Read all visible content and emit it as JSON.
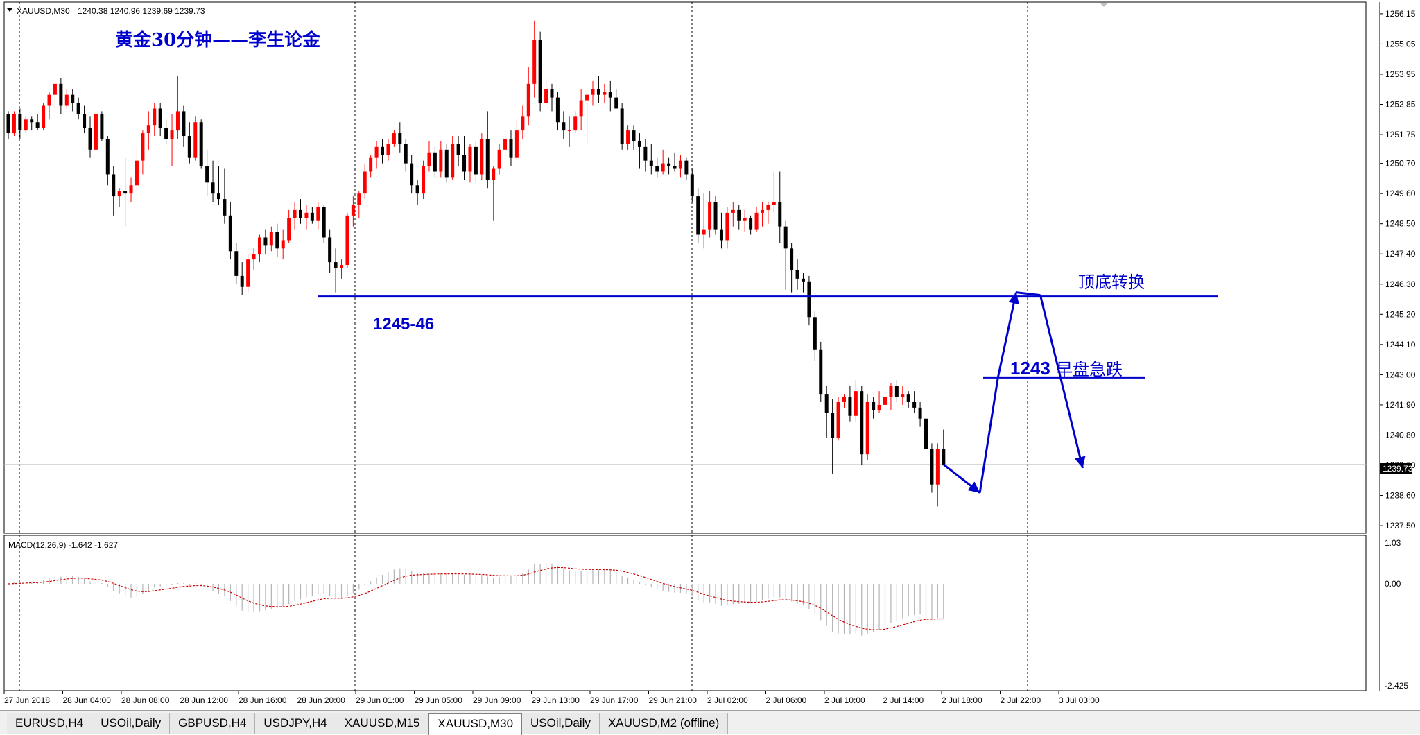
{
  "header": {
    "symbol": "XAUUSD,M30",
    "ohlc": "1240.38 1240.96 1239.69 1239.73"
  },
  "annotations": {
    "title": "黄金30分钟——李生论金",
    "support_label": "1245-46",
    "top_bottom_label": "顶底转换",
    "level_1243_num": "1243",
    "level_1243_text": "早盘急跌"
  },
  "price_axis": {
    "ticks": [
      "1256.15",
      "1255.05",
      "1253.95",
      "1252.85",
      "1251.75",
      "1250.70",
      "1249.60",
      "1248.50",
      "1247.40",
      "1246.30",
      "1245.20",
      "1244.10",
      "1243.00",
      "1241.90",
      "1240.80",
      "1239.70",
      "1238.60",
      "1237.50"
    ],
    "current_price": "1239.73"
  },
  "macd": {
    "label": "MACD(12,26,9) -1.642 -1.627",
    "scale_top": "1.03",
    "scale_zero": "0.00",
    "scale_bottom": "-2.425"
  },
  "time_axis": [
    "27 Jun 2018",
    "28 Jun 04:00",
    "28 Jun 08:00",
    "28 Jun 12:00",
    "28 Jun 16:00",
    "28 Jun 20:00",
    "29 Jun 01:00",
    "29 Jun 05:00",
    "29 Jun 09:00",
    "29 Jun 13:00",
    "29 Jun 17:00",
    "29 Jun 21:00",
    "2 Jul 02:00",
    "2 Jul 06:00",
    "2 Jul 10:00",
    "2 Jul 14:00",
    "2 Jul 18:00",
    "2 Jul 22:00",
    "3 Jul 03:00"
  ],
  "tabs": [
    {
      "label": "EURUSD,H4",
      "active": false
    },
    {
      "label": "USOil,Daily",
      "active": false
    },
    {
      "label": "GBPUSD,H4",
      "active": false
    },
    {
      "label": "USDJPY,H4",
      "active": false
    },
    {
      "label": "XAUUSD,M15",
      "active": false
    },
    {
      "label": "XAUUSD,M30",
      "active": true
    },
    {
      "label": "USOil,Daily",
      "active": false
    },
    {
      "label": "XAUUSD,M2 (offline)",
      "active": false
    }
  ],
  "colors": {
    "bull": "#ff0000",
    "bear": "#000000",
    "annotation_blue": "#0000cc",
    "macd_signal": "#cc0000",
    "macd_hist": "#b4b4b4"
  },
  "chart_data": {
    "type": "candlestick",
    "symbol": "XAUUSD",
    "timeframe": "M30",
    "ylim": [
      1237.3,
      1256.4
    ],
    "support_level": 1245.85,
    "level_1243": 1242.9,
    "current_price": 1239.73,
    "candles": [
      [
        1252.5,
        1252.6,
        1251.6,
        1251.8
      ],
      [
        1251.8,
        1252.6,
        1251.7,
        1252.5
      ],
      [
        1252.5,
        1252.7,
        1251.6,
        1251.9
      ],
      [
        1251.9,
        1252.4,
        1251.8,
        1252.3
      ],
      [
        1252.3,
        1252.4,
        1251.9,
        1252.2
      ],
      [
        1252.2,
        1252.5,
        1251.9,
        1252.0
      ],
      [
        1252.0,
        1252.9,
        1251.9,
        1252.8
      ],
      [
        1252.8,
        1253.3,
        1252.3,
        1253.2
      ],
      [
        1253.2,
        1253.6,
        1252.6,
        1253.6
      ],
      [
        1253.6,
        1253.8,
        1252.5,
        1252.8
      ],
      [
        1252.8,
        1253.4,
        1252.7,
        1253.2
      ],
      [
        1253.2,
        1253.4,
        1252.6,
        1252.9
      ],
      [
        1252.9,
        1253.1,
        1252.3,
        1252.5
      ],
      [
        1252.5,
        1252.8,
        1251.8,
        1252.0
      ],
      [
        1252.0,
        1252.4,
        1250.9,
        1251.2
      ],
      [
        1251.2,
        1252.6,
        1251.2,
        1252.5
      ],
      [
        1252.5,
        1252.6,
        1251.5,
        1251.6
      ],
      [
        1251.6,
        1251.7,
        1249.9,
        1250.3
      ],
      [
        1250.3,
        1250.6,
        1248.8,
        1249.5
      ],
      [
        1249.5,
        1249.8,
        1249.1,
        1249.7
      ],
      [
        1249.7,
        1250.9,
        1248.4,
        1249.6
      ],
      [
        1249.6,
        1250.2,
        1249.3,
        1249.9
      ],
      [
        1249.9,
        1251.3,
        1249.6,
        1250.8
      ],
      [
        1250.8,
        1251.9,
        1250.3,
        1251.8
      ],
      [
        1251.8,
        1252.6,
        1251.2,
        1252.1
      ],
      [
        1252.1,
        1252.9,
        1251.7,
        1252.7
      ],
      [
        1252.7,
        1252.9,
        1251.7,
        1252.0
      ],
      [
        1252.0,
        1252.3,
        1251.4,
        1251.6
      ],
      [
        1251.6,
        1252.5,
        1250.6,
        1251.9
      ],
      [
        1251.9,
        1253.9,
        1251.6,
        1252.6
      ],
      [
        1252.6,
        1252.8,
        1251.3,
        1251.7
      ],
      [
        1251.7,
        1252.2,
        1250.7,
        1250.9
      ],
      [
        1250.9,
        1252.4,
        1250.8,
        1252.2
      ],
      [
        1252.2,
        1252.3,
        1250.5,
        1250.6
      ],
      [
        1250.6,
        1251.2,
        1249.5,
        1250.0
      ],
      [
        1250.0,
        1250.8,
        1249.3,
        1249.6
      ],
      [
        1249.6,
        1250.6,
        1249.2,
        1249.4
      ],
      [
        1249.4,
        1250.5,
        1248.5,
        1248.8
      ],
      [
        1248.8,
        1249.3,
        1247.2,
        1247.5
      ],
      [
        1247.5,
        1247.8,
        1246.3,
        1246.6
      ],
      [
        1246.6,
        1247.1,
        1245.9,
        1246.2
      ],
      [
        1246.2,
        1247.4,
        1246.0,
        1247.2
      ],
      [
        1247.2,
        1247.6,
        1246.8,
        1247.4
      ],
      [
        1247.4,
        1248.1,
        1247.1,
        1248.0
      ],
      [
        1248.0,
        1248.3,
        1247.4,
        1247.7
      ],
      [
        1247.7,
        1248.4,
        1247.5,
        1248.2
      ],
      [
        1248.2,
        1248.5,
        1247.3,
        1247.6
      ],
      [
        1247.6,
        1248.3,
        1247.2,
        1247.9
      ],
      [
        1247.9,
        1249.0,
        1247.8,
        1248.7
      ],
      [
        1248.7,
        1249.3,
        1248.3,
        1249.0
      ],
      [
        1249.0,
        1249.4,
        1248.5,
        1248.7
      ],
      [
        1248.7,
        1249.2,
        1248.3,
        1248.9
      ],
      [
        1248.9,
        1249.1,
        1248.5,
        1248.6
      ],
      [
        1248.6,
        1249.3,
        1248.3,
        1249.1
      ],
      [
        1249.1,
        1249.2,
        1247.8,
        1248.0
      ],
      [
        1248.0,
        1248.3,
        1246.7,
        1247.1
      ],
      [
        1247.1,
        1247.6,
        1246.0,
        1246.9
      ],
      [
        1246.9,
        1247.2,
        1246.5,
        1247.0
      ],
      [
        1247.0,
        1248.9,
        1246.9,
        1248.8
      ],
      [
        1248.8,
        1249.5,
        1248.4,
        1249.2
      ],
      [
        1249.2,
        1249.7,
        1248.7,
        1249.6
      ],
      [
        1249.6,
        1250.7,
        1249.4,
        1250.4
      ],
      [
        1250.4,
        1251.0,
        1250.2,
        1250.9
      ],
      [
        1250.9,
        1251.5,
        1250.5,
        1251.3
      ],
      [
        1251.3,
        1251.6,
        1250.7,
        1251.0
      ],
      [
        1251.0,
        1251.6,
        1250.8,
        1251.4
      ],
      [
        1251.4,
        1251.9,
        1251.3,
        1251.8
      ],
      [
        1251.8,
        1252.2,
        1251.1,
        1251.4
      ],
      [
        1251.4,
        1251.6,
        1250.4,
        1250.7
      ],
      [
        1250.7,
        1251.0,
        1249.6,
        1249.9
      ],
      [
        1249.9,
        1250.1,
        1249.2,
        1249.6
      ],
      [
        1249.6,
        1250.8,
        1249.4,
        1250.6
      ],
      [
        1250.6,
        1251.5,
        1250.4,
        1251.1
      ],
      [
        1251.1,
        1251.3,
        1250.2,
        1250.4
      ],
      [
        1250.4,
        1251.5,
        1250.2,
        1251.2
      ],
      [
        1251.2,
        1251.4,
        1250.0,
        1250.2
      ],
      [
        1250.2,
        1251.7,
        1250.1,
        1251.4
      ],
      [
        1251.4,
        1251.7,
        1250.6,
        1251.0
      ],
      [
        1251.0,
        1251.7,
        1250.1,
        1250.4
      ],
      [
        1250.4,
        1251.4,
        1250.0,
        1251.3
      ],
      [
        1251.3,
        1251.5,
        1250.0,
        1250.3
      ],
      [
        1250.3,
        1251.8,
        1250.1,
        1251.6
      ],
      [
        1251.6,
        1252.6,
        1249.8,
        1250.1
      ],
      [
        1250.1,
        1250.6,
        1248.6,
        1250.5
      ],
      [
        1250.5,
        1251.4,
        1250.3,
        1251.2
      ],
      [
        1251.2,
        1251.9,
        1250.8,
        1251.6
      ],
      [
        1251.6,
        1251.9,
        1250.6,
        1250.9
      ],
      [
        1250.9,
        1252.3,
        1250.8,
        1251.9
      ],
      [
        1251.9,
        1252.8,
        1251.6,
        1252.4
      ],
      [
        1252.4,
        1254.2,
        1252.1,
        1253.6
      ],
      [
        1253.6,
        1255.9,
        1253.1,
        1255.2
      ],
      [
        1255.2,
        1255.5,
        1252.6,
        1252.9
      ],
      [
        1252.9,
        1253.8,
        1252.8,
        1253.4
      ],
      [
        1253.4,
        1253.6,
        1252.6,
        1253.1
      ],
      [
        1253.1,
        1253.3,
        1251.9,
        1252.2
      ],
      [
        1252.2,
        1252.6,
        1251.6,
        1251.9
      ],
      [
        1251.9,
        1252.4,
        1251.3,
        1251.9
      ],
      [
        1251.9,
        1252.6,
        1251.8,
        1252.4
      ],
      [
        1252.4,
        1253.4,
        1251.9,
        1253.0
      ],
      [
        1253.0,
        1253.1,
        1251.4,
        1253.2
      ],
      [
        1253.2,
        1253.7,
        1252.8,
        1253.4
      ],
      [
        1253.4,
        1253.9,
        1252.9,
        1253.2
      ],
      [
        1253.2,
        1253.6,
        1252.9,
        1253.3
      ],
      [
        1253.3,
        1253.7,
        1252.6,
        1253.1
      ],
      [
        1253.1,
        1253.4,
        1252.7,
        1252.7
      ],
      [
        1252.7,
        1252.9,
        1251.2,
        1251.4
      ],
      [
        1251.4,
        1252.1,
        1251.2,
        1251.9
      ],
      [
        1251.9,
        1252.1,
        1251.2,
        1251.5
      ],
      [
        1251.5,
        1251.8,
        1250.5,
        1251.3
      ],
      [
        1251.3,
        1251.6,
        1250.4,
        1250.8
      ],
      [
        1250.8,
        1251.4,
        1250.3,
        1250.6
      ],
      [
        1250.6,
        1250.9,
        1250.2,
        1250.4
      ],
      [
        1250.4,
        1251.2,
        1250.3,
        1250.7
      ],
      [
        1250.7,
        1250.9,
        1250.3,
        1250.6
      ],
      [
        1250.6,
        1251.1,
        1250.4,
        1250.5
      ],
      [
        1250.5,
        1251.0,
        1250.2,
        1250.8
      ],
      [
        1250.8,
        1250.9,
        1250.1,
        1250.3
      ],
      [
        1250.3,
        1250.5,
        1249.3,
        1249.5
      ],
      [
        1249.5,
        1249.8,
        1247.8,
        1248.1
      ],
      [
        1248.1,
        1249.6,
        1247.6,
        1248.3
      ],
      [
        1248.3,
        1249.7,
        1248.0,
        1249.3
      ],
      [
        1249.3,
        1249.5,
        1248.1,
        1248.3
      ],
      [
        1248.3,
        1248.9,
        1247.6,
        1247.9
      ],
      [
        1247.9,
        1249.1,
        1247.6,
        1248.9
      ],
      [
        1248.9,
        1249.3,
        1248.4,
        1249.0
      ],
      [
        1249.0,
        1249.2,
        1248.3,
        1248.6
      ],
      [
        1248.6,
        1249.0,
        1248.2,
        1248.7
      ],
      [
        1248.7,
        1248.8,
        1248.1,
        1248.3
      ],
      [
        1248.3,
        1249.1,
        1248.2,
        1248.9
      ],
      [
        1248.9,
        1249.3,
        1248.4,
        1249.0
      ],
      [
        1249.0,
        1249.3,
        1248.5,
        1249.2
      ],
      [
        1249.2,
        1250.4,
        1248.9,
        1249.3
      ],
      [
        1249.3,
        1250.4,
        1247.8,
        1248.4
      ],
      [
        1248.4,
        1248.6,
        1246.1,
        1247.6
      ],
      [
        1247.6,
        1247.8,
        1246.0,
        1246.8
      ],
      [
        1246.8,
        1247.2,
        1246.1,
        1246.5
      ],
      [
        1246.5,
        1246.7,
        1246.0,
        1246.4
      ],
      [
        1246.4,
        1246.6,
        1244.8,
        1245.1
      ],
      [
        1245.1,
        1245.3,
        1243.5,
        1243.9
      ],
      [
        1243.9,
        1244.2,
        1242.0,
        1242.3
      ],
      [
        1242.3,
        1242.6,
        1240.7,
        1241.6
      ],
      [
        1241.6,
        1242.1,
        1239.4,
        1240.7
      ],
      [
        1240.7,
        1242.2,
        1240.6,
        1242.0
      ],
      [
        1242.0,
        1242.3,
        1241.8,
        1242.2
      ],
      [
        1242.2,
        1242.6,
        1241.3,
        1241.5
      ],
      [
        1241.5,
        1242.8,
        1241.3,
        1242.4
      ],
      [
        1242.4,
        1242.6,
        1239.7,
        1240.1
      ],
      [
        1240.1,
        1242.3,
        1239.9,
        1242.0
      ],
      [
        1242.0,
        1242.2,
        1241.4,
        1241.7
      ],
      [
        1241.7,
        1242.4,
        1241.6,
        1241.9
      ],
      [
        1241.9,
        1242.5,
        1241.6,
        1242.2
      ],
      [
        1242.2,
        1242.7,
        1241.7,
        1242.6
      ],
      [
        1242.6,
        1242.8,
        1242.0,
        1242.2
      ],
      [
        1242.2,
        1242.6,
        1241.9,
        1242.3
      ],
      [
        1242.3,
        1242.4,
        1241.8,
        1242.0
      ],
      [
        1242.0,
        1242.4,
        1241.6,
        1241.8
      ],
      [
        1241.8,
        1242.0,
        1241.1,
        1241.4
      ],
      [
        1241.4,
        1241.7,
        1240.0,
        1240.3
      ],
      [
        1240.3,
        1240.5,
        1238.7,
        1239.0
      ],
      [
        1239.0,
        1240.5,
        1238.2,
        1240.3
      ],
      [
        1240.3,
        1241.0,
        1239.7,
        1239.7
      ]
    ],
    "projected_path": [
      [
        0,
        1239.73
      ],
      [
        3,
        1238.7
      ],
      [
        4.5,
        1242.9
      ],
      [
        6,
        1246.0
      ],
      [
        8,
        1245.9
      ],
      [
        11.5,
        1239.6
      ]
    ]
  }
}
